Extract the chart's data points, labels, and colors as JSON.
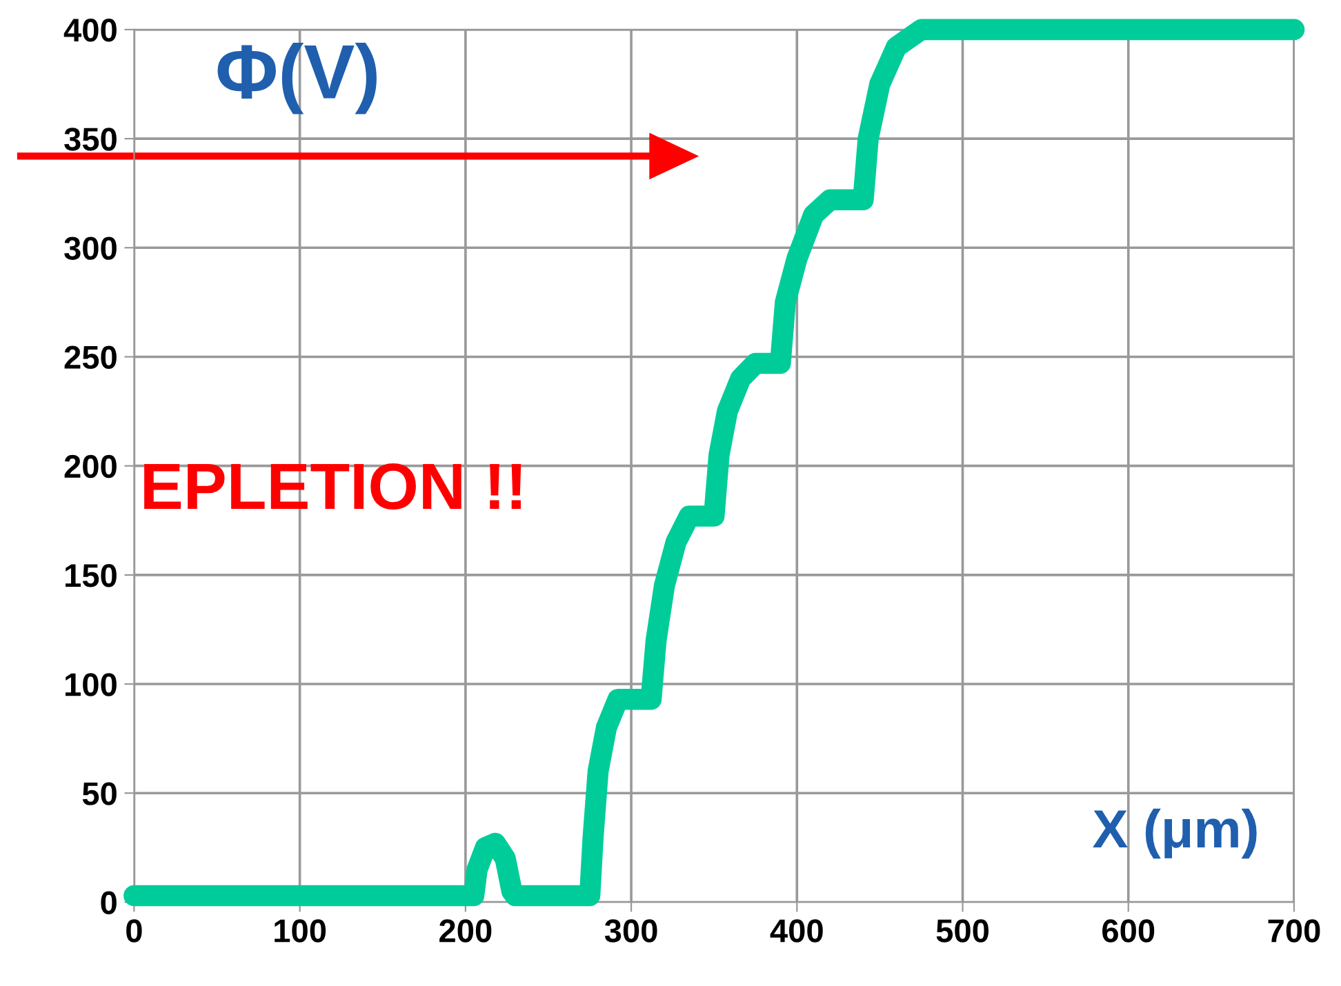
{
  "chart_data": {
    "type": "line",
    "xlabel": "X (μm)",
    "ylabel": "Φ(V)",
    "annotations": [
      "EPLETION !!"
    ],
    "x": [
      0,
      205,
      207,
      212,
      218,
      224,
      228,
      230,
      275,
      277,
      280,
      285,
      292,
      312,
      315,
      320,
      327,
      335,
      350,
      353,
      358,
      366,
      375,
      390,
      393,
      400,
      410,
      420,
      440,
      443,
      450,
      460,
      475,
      700
    ],
    "series": [
      {
        "color": "#00cc99",
        "values": [
          3,
          3,
          15,
          25,
          27,
          20,
          5,
          3,
          3,
          30,
          60,
          80,
          93,
          93,
          120,
          145,
          165,
          177,
          177,
          205,
          225,
          240,
          247,
          247,
          275,
          295,
          315,
          322,
          322,
          350,
          375,
          392,
          400,
          400
        ]
      }
    ],
    "xlim": [
      0,
      700
    ],
    "xticks": [
      0,
      100,
      200,
      300,
      400,
      500,
      600,
      700
    ],
    "ylim": [
      0,
      400
    ],
    "yticks": [
      0,
      50,
      100,
      150,
      200,
      250,
      300,
      350,
      400
    ],
    "grid": true,
    "legend": false,
    "line_style": "solid"
  }
}
